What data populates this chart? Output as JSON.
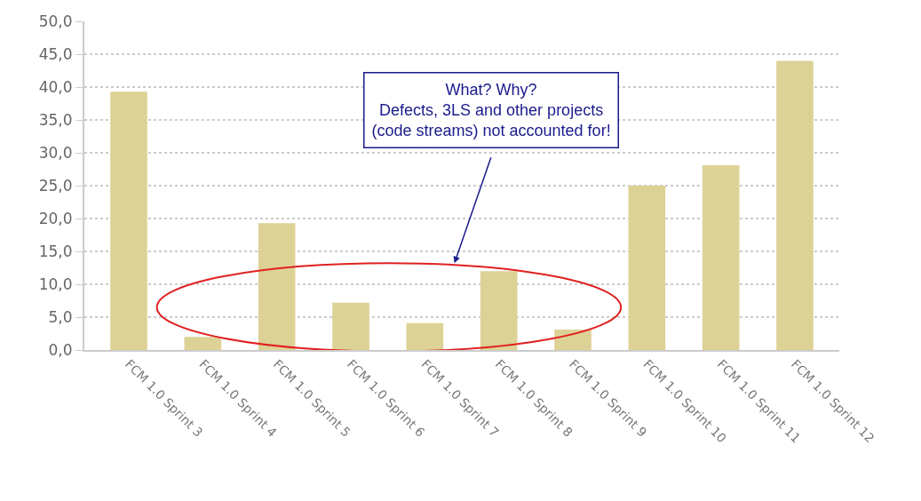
{
  "chart_data": {
    "type": "bar",
    "categories": [
      "FCM 1.0 Sprint 3",
      "FCM 1.0 Sprint 4",
      "FCM 1.0 Sprint 5",
      "FCM 1.0 Sprint 6",
      "FCM 1.0 Sprint 7",
      "FCM 1.0 Sprint 8",
      "FCM 1.0 Sprint 9",
      "FCM 1.0 Sprint 10",
      "FCM 1.0 Sprint 11",
      "FCM 1.0 Sprint 12"
    ],
    "values": [
      39.3,
      2.0,
      19.3,
      7.2,
      4.1,
      12.0,
      3.1,
      25.0,
      28.1,
      44.0
    ],
    "color": "#ddd296",
    "ylim": [
      0,
      50
    ],
    "yticks": [
      {
        "value": 0,
        "label": "0,0"
      },
      {
        "value": 5,
        "label": "5,0"
      },
      {
        "value": 10,
        "label": "10,0"
      },
      {
        "value": 15,
        "label": "15,0"
      },
      {
        "value": 20,
        "label": "20,0"
      },
      {
        "value": 25,
        "label": "25,0"
      },
      {
        "value": 30,
        "label": "30,0"
      },
      {
        "value": 35,
        "label": "35,0"
      },
      {
        "value": 40,
        "label": "40,0"
      },
      {
        "value": 45,
        "label": "45,0"
      },
      {
        "value": 50,
        "label": "50,0"
      }
    ],
    "grid": "y",
    "annotations": [
      "What? Why?\nDefects, 3LS and other projects\n(code streams) not accounted for!"
    ]
  }
}
